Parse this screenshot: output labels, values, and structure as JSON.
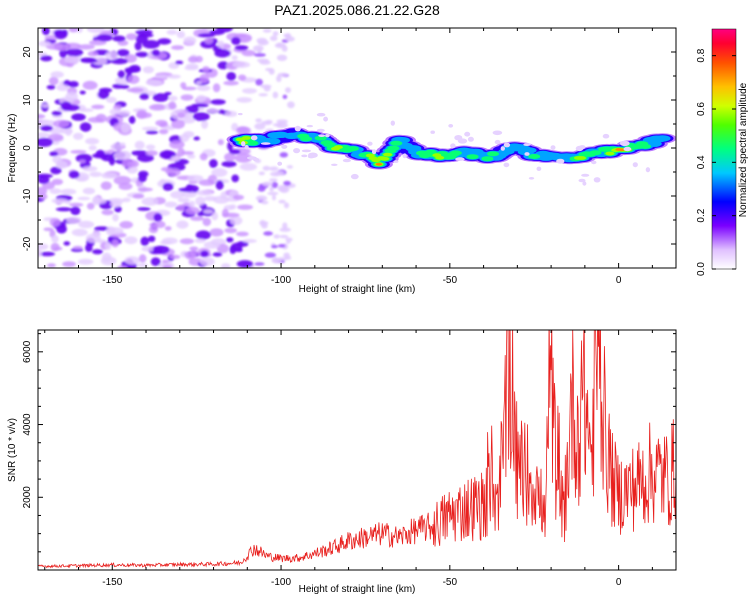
{
  "title": "PAZ1.2025.086.21.22.G28",
  "colors": {
    "snr_line": "#e8201e",
    "axis": "#000000",
    "background": "#ffffff"
  },
  "chart_data": [
    {
      "type": "heatmap",
      "xlabel": "Height of straight line (km)",
      "ylabel": "Frequency (Hz)",
      "xlim": [
        -172,
        17
      ],
      "ylim": [
        -25,
        25
      ],
      "xticks": [
        -150,
        -100,
        -50,
        0
      ],
      "xtick_labels": [
        "-150",
        "-100",
        "-50",
        "0"
      ],
      "yticks": [
        -20,
        -10,
        0,
        10,
        20
      ],
      "ytick_labels": [
        "-20",
        "-10",
        "0",
        "10",
        "20"
      ],
      "colorbar": {
        "label": "Normalized spectral amplitude",
        "range": [
          0,
          0.9
        ],
        "ticks": [
          0,
          0.2,
          0.4,
          0.6,
          0.8
        ],
        "tick_labels": [
          "0.0",
          "0.2",
          "0.4",
          "0.6",
          "0.8"
        ],
        "colormap": [
          "#ffffff",
          "#7a00ff",
          "#0000ff",
          "#00c8ff",
          "#00ff80",
          "#b0ff00",
          "#ffff00",
          "#ff8000",
          "#ff0000",
          "#ff0080"
        ]
      },
      "ridge": [
        {
          "x": -112,
          "f": 1.5,
          "a": 0.6
        },
        {
          "x": -105,
          "f": 1.5,
          "a": 0.3
        },
        {
          "x": -96,
          "f": 3.0,
          "a": 0.35
        },
        {
          "x": -90,
          "f": 2.0,
          "a": 0.35
        },
        {
          "x": -83,
          "f": 0.0,
          "a": 0.6
        },
        {
          "x": -77,
          "f": -1.0,
          "a": 0.35
        },
        {
          "x": -71,
          "f": -3.0,
          "a": 0.8
        },
        {
          "x": -65,
          "f": 1.5,
          "a": 0.3
        },
        {
          "x": -60,
          "f": -1.0,
          "a": 0.35
        },
        {
          "x": -53,
          "f": -1.5,
          "a": 0.55
        },
        {
          "x": -45,
          "f": -1.0,
          "a": 0.35
        },
        {
          "x": -38,
          "f": -2.0,
          "a": 0.4
        },
        {
          "x": -30,
          "f": 0.5,
          "a": 0.3
        },
        {
          "x": -25,
          "f": -1.5,
          "a": 0.35
        },
        {
          "x": -18,
          "f": -2.0,
          "a": 0.3
        },
        {
          "x": -11,
          "f": -2.0,
          "a": 0.6
        },
        {
          "x": -6,
          "f": -1.0,
          "a": 0.35
        },
        {
          "x": 0,
          "f": -0.5,
          "a": 0.7
        },
        {
          "x": 7,
          "f": 0.5,
          "a": 0.45
        },
        {
          "x": 13,
          "f": 2.0,
          "a": 0.4
        }
      ]
    },
    {
      "type": "line",
      "xlabel": "Height of straight line (km)",
      "ylabel": "SNR (10 * v/v)",
      "xlim": [
        -172,
        17
      ],
      "ylim": [
        0,
        6600
      ],
      "xticks": [
        -150,
        -100,
        -50,
        0
      ],
      "xtick_labels": [
        "-150",
        "-100",
        "-50",
        "0"
      ],
      "yticks": [
        2000,
        4000,
        6000
      ],
      "ytick_labels": [
        "2000",
        "4000",
        "6000"
      ],
      "series": [
        {
          "x": [
            -172,
            -160,
            -150,
            -140,
            -130,
            -120,
            -112,
            -108,
            -104,
            -100,
            -95,
            -90,
            -85,
            -80,
            -75,
            -70,
            -65,
            -60,
            -55,
            -50,
            -45,
            -40,
            -35,
            -32,
            -30,
            -28,
            -25,
            -22,
            -20,
            -18,
            -16,
            -14,
            -12,
            -10,
            -8,
            -6,
            -4,
            -2,
            0,
            5,
            10,
            15,
            17
          ],
          "values": [
            100,
            120,
            140,
            130,
            150,
            160,
            200,
            600,
            380,
            320,
            330,
            450,
            600,
            800,
            900,
            1000,
            900,
            1100,
            1200,
            1500,
            1700,
            1800,
            2200,
            6100,
            2500,
            2800,
            2400,
            1400,
            4900,
            2200,
            1500,
            4600,
            3800,
            4700,
            3100,
            6500,
            3700,
            2500,
            2100,
            2300,
            2700,
            2500,
            2900
          ]
        }
      ]
    }
  ]
}
